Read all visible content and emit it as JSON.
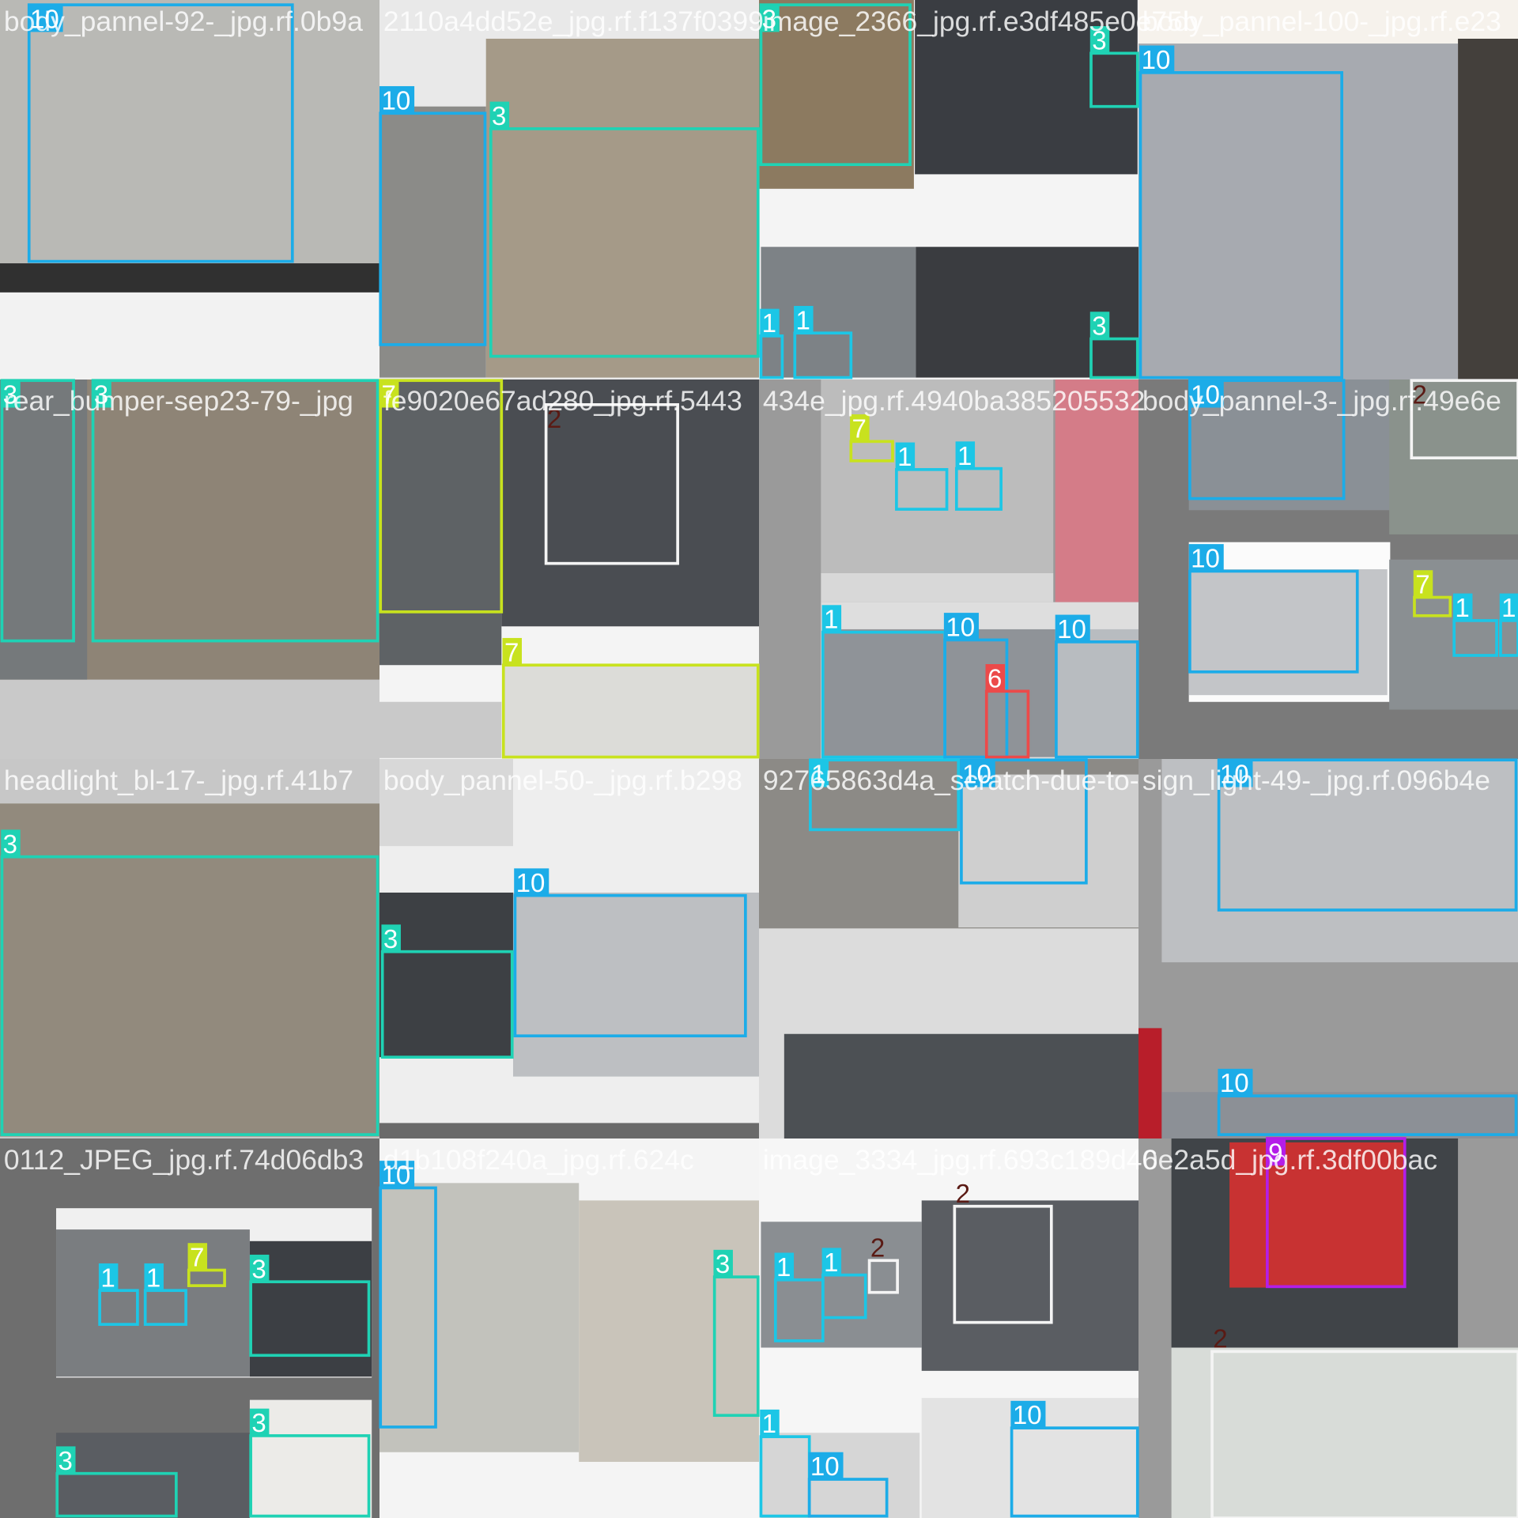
{
  "tiles": [
    {
      "filename": "body_pannel-92-_jpg.rf.0b9a",
      "labels": [
        "10"
      ]
    },
    {
      "filename": "2110a4dd52e_jpg.rf.f137f0399",
      "labels": [
        "10",
        "3"
      ]
    },
    {
      "filename": "image_2366_jpg.rf.e3df485e0e75b",
      "labels": [
        "3",
        "3",
        "1",
        "1",
        "3"
      ]
    },
    {
      "filename": "body_pannel-100-_jpg.rf.e23",
      "labels": [
        "10"
      ]
    },
    {
      "filename": "rear_bumper-sep23-79-_jpg",
      "labels": [
        "3",
        "3"
      ]
    },
    {
      "filename": "fe9020e67ad280_jpg.rf.5443",
      "labels": [
        "7",
        "2",
        "7"
      ]
    },
    {
      "filename": "434e_jpg.rf.4940ba385205532",
      "labels": [
        "7",
        "1",
        "1",
        "1",
        "10",
        "6",
        "10"
      ]
    },
    {
      "filename": "body_pannel-3-_jpg.rf.49e6e",
      "labels": [
        "10",
        "2",
        "10",
        "7",
        "1",
        "1"
      ]
    },
    {
      "filename": "headlight_bl-17-_jpg.rf.41b7",
      "labels": [
        "3"
      ]
    },
    {
      "filename": "body_pannel-50-_jpg.rf.b298",
      "labels": [
        "3",
        "10"
      ]
    },
    {
      "filename": "92765863d4a_scratch-due-to-",
      "labels": [
        "1",
        "10"
      ]
    },
    {
      "filename": "sign_light-49-_jpg.rf.096b4e",
      "labels": [
        "10",
        "10"
      ]
    },
    {
      "filename": "0112_JPEG_jpg.rf.74d06db3",
      "labels": [
        "1",
        "1",
        "7",
        "3",
        "3",
        "3"
      ]
    },
    {
      "filename": "d1b108f240a_jpg.rf.624c",
      "labels": [
        "10",
        "3"
      ]
    },
    {
      "filename": "image_3334_jpg.rf.693c189d40",
      "labels": [
        "1",
        "1",
        "2",
        "2",
        "1",
        "10",
        "10"
      ]
    },
    {
      "filename": "6e2a5d_jpg.rf.3df00bac",
      "labels": [
        "9",
        "2"
      ]
    }
  ],
  "class_colors": {
    "1": "#1cc6e6",
    "2": "#f4f4f4",
    "3": "#1fd2b4",
    "6": "#ec4a4a",
    "7": "#c8e21e",
    "9": "#b41ee8",
    "10": "#1cace8"
  }
}
